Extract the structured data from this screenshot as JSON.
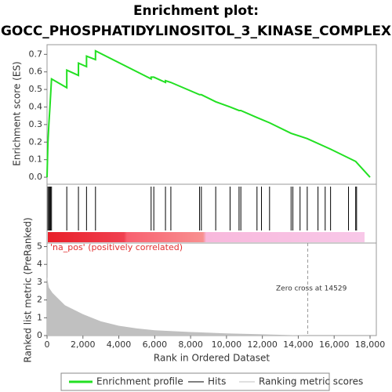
{
  "chart_data": [
    {
      "type": "line",
      "title": "Enrichment plot:",
      "subtitle": "GOCC_PHOSPHATIDYLINOSITOL_3_KINASE_COMPLEX",
      "y_label": "Enrichment score (ES)",
      "series": [
        {
          "name": "Enrichment profile",
          "color": "#22e022",
          "x": [
            0,
            50,
            100,
            150,
            200,
            250,
            1100,
            1100,
            1750,
            1750,
            2200,
            2200,
            2700,
            2700,
            5800,
            5800,
            5950,
            6600,
            6600,
            6900,
            8500,
            8600,
            9400,
            10200,
            10700,
            10800,
            11700,
            12400,
            13600,
            14500,
            15800,
            17200,
            18000
          ],
          "values": [
            0,
            0.2,
            0.3,
            0.38,
            0.47,
            0.56,
            0.51,
            0.61,
            0.58,
            0.65,
            0.63,
            0.69,
            0.67,
            0.72,
            0.56,
            0.57,
            0.57,
            0.54,
            0.55,
            0.54,
            0.47,
            0.47,
            0.43,
            0.4,
            0.38,
            0.38,
            0.34,
            0.31,
            0.25,
            0.22,
            0.16,
            0.09,
            0
          ]
        }
      ],
      "xlim": [
        0,
        18350
      ],
      "ylim": [
        -0.04,
        0.755
      ],
      "yticks": [
        {
          "value": 0,
          "label": "0.0"
        },
        0.1,
        0.2,
        0.3,
        0.4,
        0.5,
        0.6,
        0.7
      ],
      "grid": false
    },
    {
      "type": "hits",
      "series": [
        {
          "name": "Hits",
          "color": "#000000",
          "x": [
            50,
            100,
            150,
            200,
            250,
            1100,
            1750,
            2200,
            2700,
            5800,
            5950,
            6600,
            6900,
            8500,
            8600,
            9400,
            10200,
            10700,
            10800,
            11700,
            11950,
            12400,
            13600,
            13700,
            14100,
            14500,
            15100,
            15500,
            15800,
            16800,
            17200,
            17250
          ]
        }
      ],
      "xlim": [
        0,
        18350
      ]
    },
    {
      "type": "area",
      "y_label": "Ranked list metric (PreRanked)",
      "x_label": "Rank in Ordered Dataset",
      "annotations": [
        "'na_pos' (positively correlated)",
        "Zero cross at 14529"
      ],
      "zero_cross": 14529,
      "series": [
        {
          "name": "Ranking metric scores",
          "color": "#c0c0c0",
          "x": [
            0,
            100,
            300,
            600,
            1000,
            2000,
            3000,
            4000,
            5000,
            6000,
            8000,
            10000,
            12000,
            14529,
            18000
          ],
          "values": [
            3.3,
            2.7,
            2.4,
            2.1,
            1.7,
            1.2,
            0.8,
            0.55,
            0.4,
            0.3,
            0.2,
            0.12,
            0.07,
            0,
            0
          ]
        }
      ],
      "xlim": [
        0,
        18350
      ],
      "ylim": [
        0,
        5.2
      ],
      "yticks": [
        0,
        1,
        2,
        3,
        4,
        5
      ],
      "xticks": [
        0,
        {
          "value": 2000,
          "label": "2,000"
        },
        {
          "value": 4000,
          "label": "4,000"
        },
        {
          "value": 6000,
          "label": "6,000"
        },
        {
          "value": 8000,
          "label": "8,000"
        },
        {
          "value": 10000,
          "label": "10,000"
        },
        {
          "value": 12000,
          "label": "12,000"
        },
        {
          "value": 14000,
          "label": "14,000"
        },
        {
          "value": 16000,
          "label": "16,000"
        },
        {
          "value": 18000,
          "label": "18,000"
        }
      ]
    }
  ]
}
